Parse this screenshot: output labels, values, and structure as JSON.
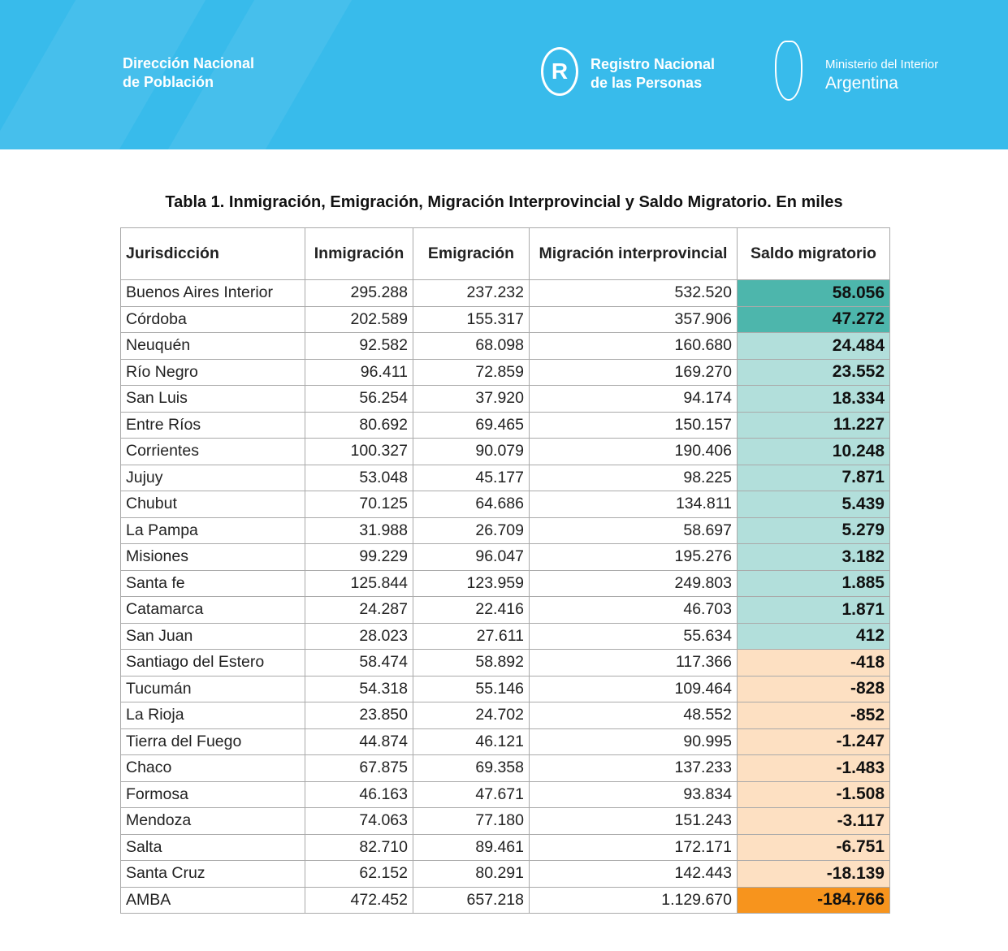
{
  "header": {
    "org_line1": "Dirección Nacional",
    "org_line2": "de Población",
    "renaper_line1": "Registro Nacional",
    "renaper_line2": "de las Personas",
    "renaper_logo": "R",
    "ministry_line1": "Ministerio del Interior",
    "ministry_line2": "Argentina"
  },
  "title": "Tabla 1. Inmigración, Emigración, Migración Interprovincial y Saldo Migratorio. En miles",
  "colors": {
    "banner": "#38bbeb",
    "high_pos": "#4db6ac",
    "pos": "#b2dfdb",
    "neg": "#fde0c2",
    "high_neg": "#f7941d"
  },
  "table": {
    "headers": [
      "Jurisdicción",
      "Inmigración",
      "Emigración",
      "Migración interprovincial",
      "Saldo migratorio"
    ],
    "rows": [
      {
        "cells": [
          "Buenos Aires Interior",
          "295.288",
          "237.232",
          "532.520",
          "58.056"
        ],
        "tone": "high_pos"
      },
      {
        "cells": [
          "Córdoba",
          "202.589",
          "155.317",
          "357.906",
          "47.272"
        ],
        "tone": "high_pos"
      },
      {
        "cells": [
          "Neuquén",
          "92.582",
          "68.098",
          "160.680",
          "24.484"
        ],
        "tone": "pos"
      },
      {
        "cells": [
          "Río Negro",
          "96.411",
          "72.859",
          "169.270",
          "23.552"
        ],
        "tone": "pos"
      },
      {
        "cells": [
          "San Luis",
          "56.254",
          "37.920",
          "94.174",
          "18.334"
        ],
        "tone": "pos"
      },
      {
        "cells": [
          "Entre Ríos",
          "80.692",
          "69.465",
          "150.157",
          "11.227"
        ],
        "tone": "pos"
      },
      {
        "cells": [
          "Corrientes",
          "100.327",
          "90.079",
          "190.406",
          "10.248"
        ],
        "tone": "pos"
      },
      {
        "cells": [
          "Jujuy",
          "53.048",
          "45.177",
          "98.225",
          "7.871"
        ],
        "tone": "pos"
      },
      {
        "cells": [
          "Chubut",
          "70.125",
          "64.686",
          "134.811",
          "5.439"
        ],
        "tone": "pos"
      },
      {
        "cells": [
          "La Pampa",
          "31.988",
          "26.709",
          "58.697",
          "5.279"
        ],
        "tone": "pos"
      },
      {
        "cells": [
          "Misiones",
          "99.229",
          "96.047",
          "195.276",
          "3.182"
        ],
        "tone": "pos"
      },
      {
        "cells": [
          "Santa fe",
          "125.844",
          "123.959",
          "249.803",
          "1.885"
        ],
        "tone": "pos"
      },
      {
        "cells": [
          "Catamarca",
          "24.287",
          "22.416",
          "46.703",
          "1.871"
        ],
        "tone": "pos"
      },
      {
        "cells": [
          "San Juan",
          "28.023",
          "27.611",
          "55.634",
          "412"
        ],
        "tone": "pos"
      },
      {
        "cells": [
          "Santiago del Estero",
          "58.474",
          "58.892",
          "117.366",
          "-418"
        ],
        "tone": "neg"
      },
      {
        "cells": [
          "Tucumán",
          "54.318",
          "55.146",
          "109.464",
          "-828"
        ],
        "tone": "neg"
      },
      {
        "cells": [
          "La Rioja",
          "23.850",
          "24.702",
          "48.552",
          "-852"
        ],
        "tone": "neg"
      },
      {
        "cells": [
          "Tierra del Fuego",
          "44.874",
          "46.121",
          "90.995",
          "-1.247"
        ],
        "tone": "neg"
      },
      {
        "cells": [
          "Chaco",
          "67.875",
          "69.358",
          "137.233",
          "-1.483"
        ],
        "tone": "neg"
      },
      {
        "cells": [
          "Formosa",
          "46.163",
          "47.671",
          "93.834",
          "-1.508"
        ],
        "tone": "neg"
      },
      {
        "cells": [
          "Mendoza",
          "74.063",
          "77.180",
          "151.243",
          "-3.117"
        ],
        "tone": "neg"
      },
      {
        "cells": [
          "Salta",
          "82.710",
          "89.461",
          "172.171",
          "-6.751"
        ],
        "tone": "neg"
      },
      {
        "cells": [
          "Santa Cruz",
          "62.152",
          "80.291",
          "142.443",
          "-18.139"
        ],
        "tone": "neg"
      },
      {
        "cells": [
          "AMBA",
          "472.452",
          "657.218",
          "1.129.670",
          "-184.766"
        ],
        "tone": "high_neg"
      }
    ]
  }
}
